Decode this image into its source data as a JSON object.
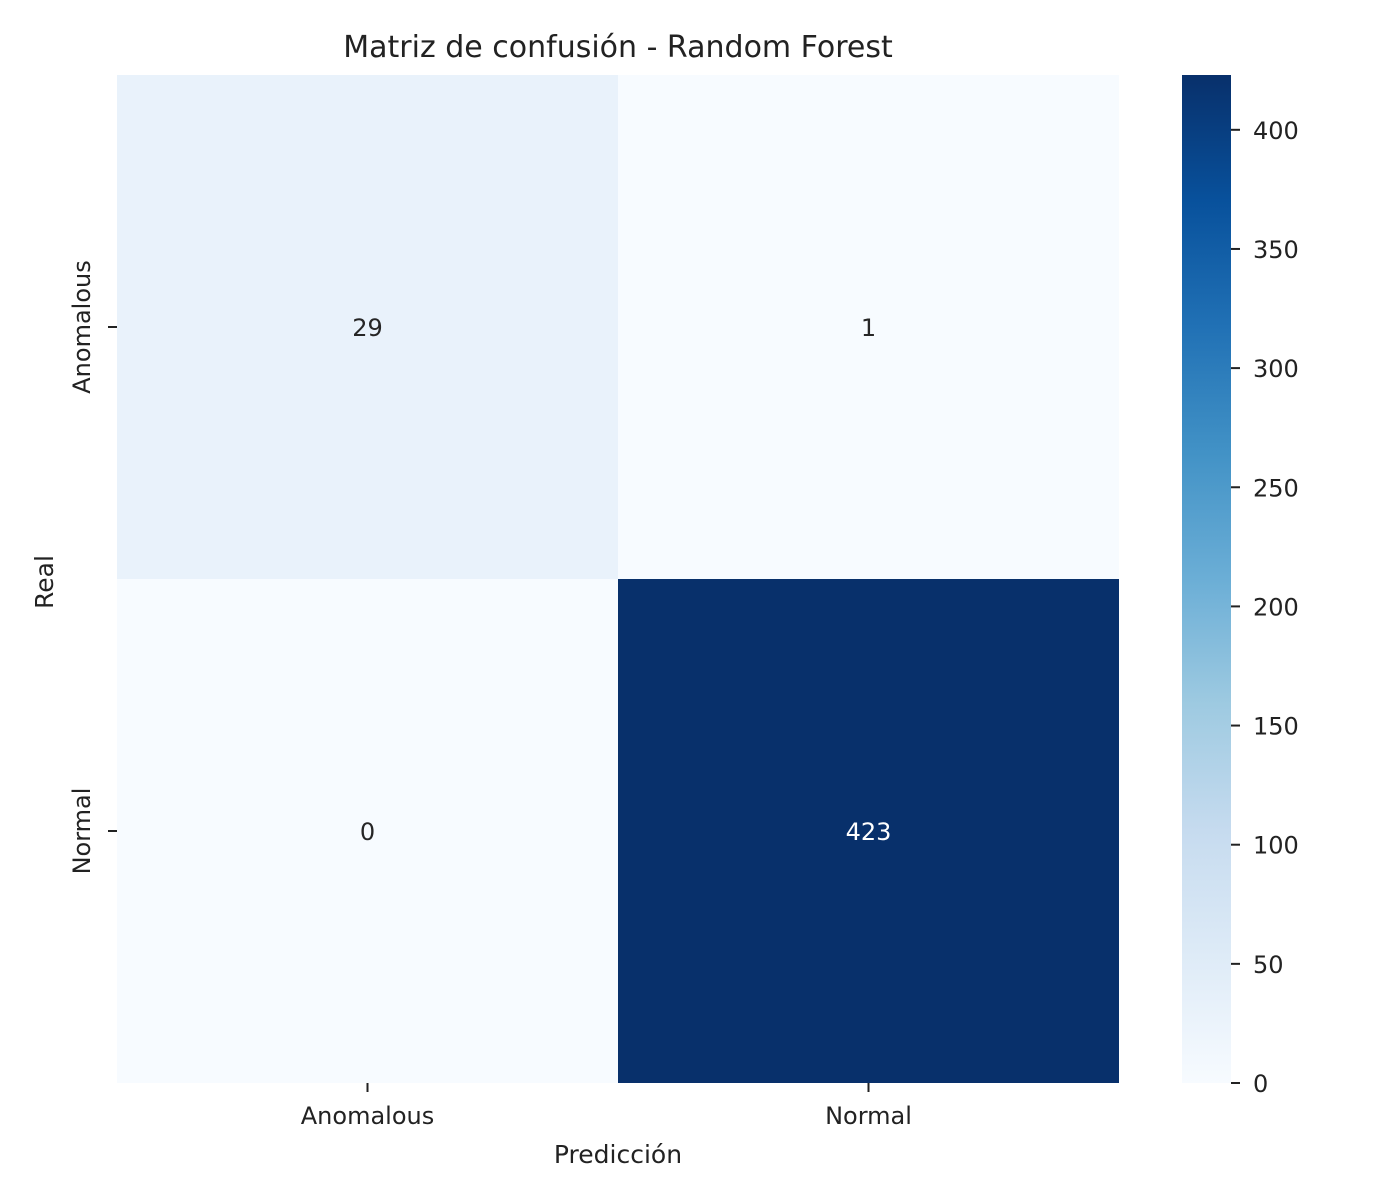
{
  "chart_data": {
    "type": "heatmap",
    "title": "Matriz de confusión - Random Forest",
    "xlabel": "Predicción",
    "ylabel": "Real",
    "x_categories": [
      "Anomalous",
      "Normal"
    ],
    "y_categories": [
      "Anomalous",
      "Normal"
    ],
    "values": [
      [
        29,
        1
      ],
      [
        0,
        423
      ]
    ],
    "colormap": "Blues",
    "color_range": [
      0,
      423
    ],
    "colorbar_ticks": [
      0,
      50,
      100,
      150,
      200,
      250,
      300,
      350,
      400
    ],
    "grid": false
  }
}
